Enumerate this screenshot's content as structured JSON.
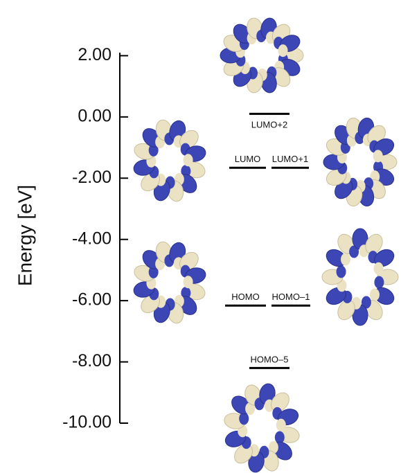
{
  "chart_data": {
    "type": "levels",
    "y_label": "Energy [eV]",
    "ylim": [
      -10,
      2.1
    ],
    "yticks": [
      {
        "value": 2,
        "label": "2.00"
      },
      {
        "value": 0,
        "label": "0.00"
      },
      {
        "value": -2,
        "label": "-2.00"
      },
      {
        "value": -4,
        "label": "-4.00"
      },
      {
        "value": -6,
        "label": "-6.00"
      },
      {
        "value": -8,
        "label": "-8.00"
      },
      {
        "value": -10,
        "label": "-10.00"
      }
    ],
    "levels": [
      {
        "name": "LUMO+2",
        "value": 0.1
      },
      {
        "name": "LUMO",
        "value": -1.66
      },
      {
        "name": "LUMO+1",
        "value": -1.66
      },
      {
        "name": "HOMO",
        "value": -6.16
      },
      {
        "name": "HOMO–1",
        "value": -6.16
      },
      {
        "name": "HOMO–5",
        "value": -8.2
      }
    ],
    "color": "#000000"
  }
}
